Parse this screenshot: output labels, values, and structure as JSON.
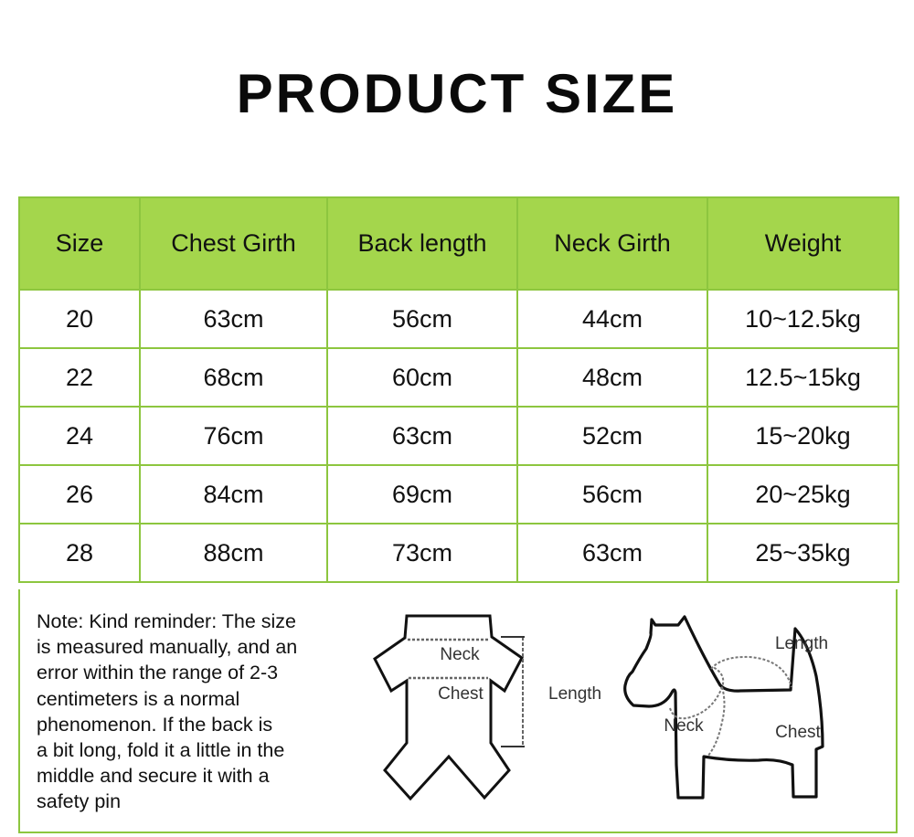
{
  "title": "PRODUCT SIZE",
  "table": {
    "headers": [
      "Size",
      "Chest Girth",
      "Back length",
      "Neck Girth",
      "Weight"
    ],
    "rows": [
      [
        "20",
        "63cm",
        "56cm",
        "44cm",
        "10~12.5kg"
      ],
      [
        "22",
        "68cm",
        "60cm",
        "48cm",
        "12.5~15kg"
      ],
      [
        "24",
        "76cm",
        "63cm",
        "52cm",
        "15~20kg"
      ],
      [
        "26",
        "84cm",
        "69cm",
        "56cm",
        "20~25kg"
      ],
      [
        "28",
        "88cm",
        "73cm",
        "63cm",
        "25~35kg"
      ]
    ]
  },
  "note": {
    "lines": [
      "Note: Kind reminder: The size",
      "is measured manually, and an",
      "error within the range of 2-3",
      "centimeters is a normal",
      "phenomenon. If the back is",
      "a bit long, fold it a little in the",
      "middle and secure it with a",
      "safety pin"
    ]
  },
  "diagram": {
    "garment_labels": {
      "neck": "Neck",
      "chest": "Chest",
      "length": "Length"
    },
    "dog_labels": {
      "length": "Length",
      "neck": "Neck",
      "chest": "Chest"
    }
  },
  "colors": {
    "header_bg": "#a4d64c",
    "border": "#8dc63f"
  }
}
